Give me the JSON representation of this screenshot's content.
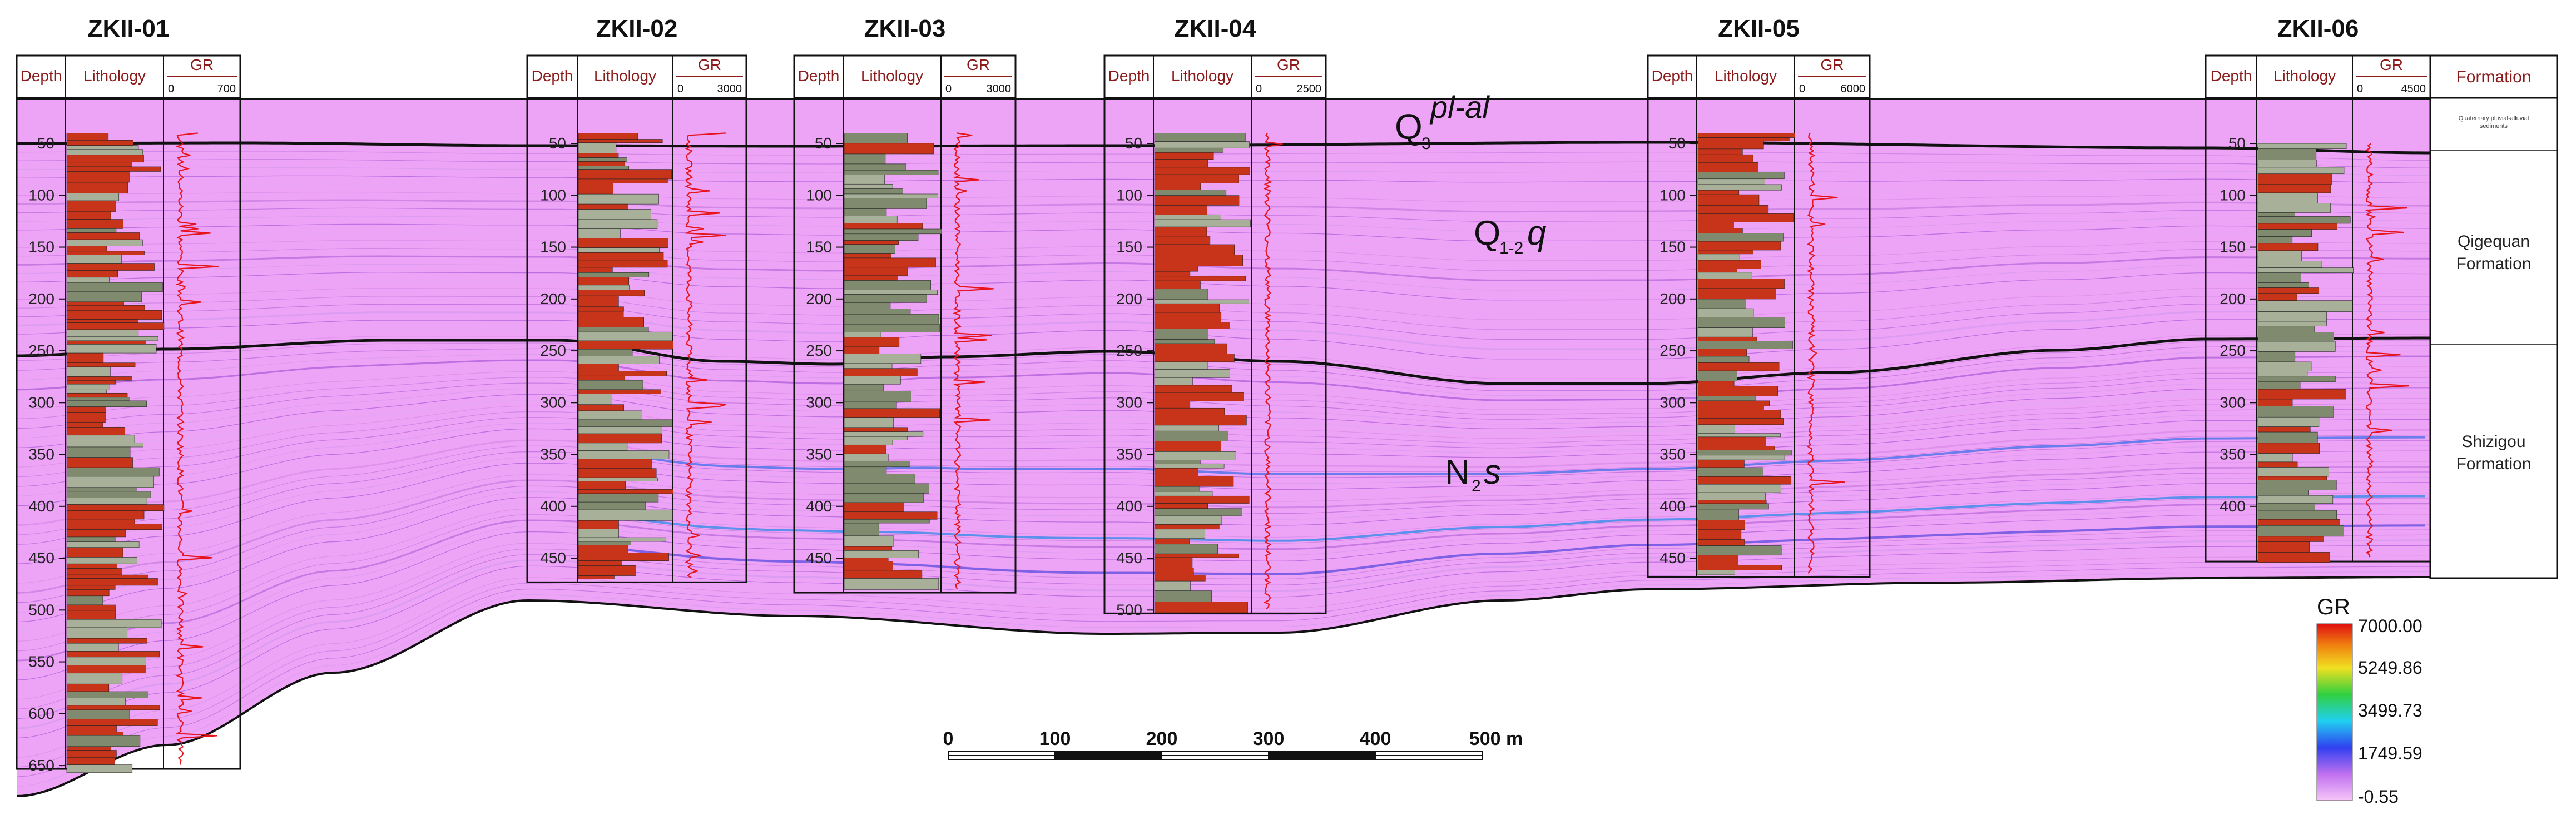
{
  "wells": [
    {
      "id": "ZKII-01",
      "depth_label": "Depth",
      "lith_label": "Lithology",
      "gr_label": "GR",
      "gr_min": "0",
      "gr_max": "700",
      "ticks": [
        "50",
        "100",
        "150",
        "200",
        "250",
        "300",
        "350",
        "400",
        "450",
        "500",
        "550",
        "600",
        "650"
      ],
      "max_depth": 650
    },
    {
      "id": "ZKII-02",
      "depth_label": "Depth",
      "lith_label": "Lithology",
      "gr_label": "GR",
      "gr_min": "0",
      "gr_max": "3000",
      "ticks": [
        "50",
        "100",
        "150",
        "200",
        "250",
        "300",
        "350",
        "400",
        "450"
      ],
      "max_depth": 470
    },
    {
      "id": "ZKII-03",
      "depth_label": "Depth",
      "lith_label": "Lithology",
      "gr_label": "GR",
      "gr_min": "0",
      "gr_max": "3000",
      "ticks": [
        "50",
        "100",
        "150",
        "200",
        "250",
        "300",
        "350",
        "400",
        "450"
      ],
      "max_depth": 480
    },
    {
      "id": "ZKII-04",
      "depth_label": "Depth",
      "lith_label": "Lithology",
      "gr_label": "GR",
      "gr_min": "0",
      "gr_max": "2500",
      "ticks": [
        "50",
        "100",
        "150",
        "200",
        "250",
        "300",
        "350",
        "400",
        "450",
        "500"
      ],
      "max_depth": 500
    },
    {
      "id": "ZKII-05",
      "depth_label": "Depth",
      "lith_label": "Lithology",
      "gr_label": "GR",
      "gr_min": "0",
      "gr_max": "6000",
      "ticks": [
        "50",
        "100",
        "150",
        "200",
        "250",
        "300",
        "350",
        "400",
        "450"
      ],
      "max_depth": 465
    },
    {
      "id": "ZKII-06",
      "depth_label": "Depth",
      "lith_label": "Lithology",
      "gr_label": "GR",
      "gr_min": "0",
      "gr_max": "4500",
      "ticks": [
        "50",
        "100",
        "150",
        "200",
        "250",
        "300",
        "350",
        "400"
      ],
      "max_depth": 450
    }
  ],
  "formation_column": {
    "header": "Formation",
    "units": [
      {
        "name": "Quaternary pluvial-alluvial sediments"
      },
      {
        "name": "Qigequan Formation"
      },
      {
        "name": "Shizigou Formation"
      }
    ]
  },
  "strata_labels": {
    "q3": {
      "main": "Q",
      "sub": "3",
      "sup": "pl-al"
    },
    "q12": {
      "main": "Q",
      "sub": "1-2",
      "italic": "q"
    },
    "n2": {
      "main": "N",
      "sub": "2",
      "italic": "s"
    }
  },
  "scale_bar": {
    "ticks": [
      "0",
      "100",
      "200",
      "300",
      "400",
      "500 m"
    ]
  },
  "legend": {
    "title": "GR",
    "values": [
      "7000.00",
      "5249.86",
      "3499.73",
      "1749.59",
      "-0.55"
    ]
  },
  "colors": {
    "section_bg": "#eea4f6",
    "gr_curve": "#e8141c",
    "lith_sand": "#c8341a",
    "lith_mud": "#a8b09a",
    "frame": "#000000",
    "well_label": "#000000",
    "header_text": "#8b1a1a"
  }
}
